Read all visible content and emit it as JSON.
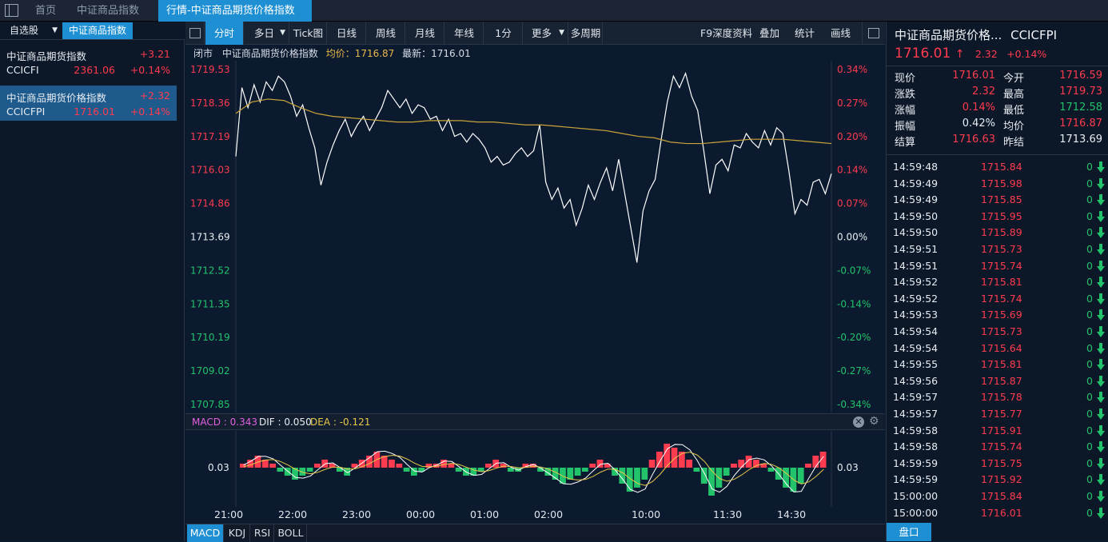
{
  "topbar": {
    "tabs": [
      "首页",
      "中证商品指数"
    ],
    "active_tab": "行情-中证商品期货价格指数",
    "close_glyph": "×"
  },
  "left": {
    "tab_watchlist": "自选股",
    "tab_index": "中证商品指数",
    "stocks": [
      {
        "name": "中证商品期货指数",
        "change": "+3.21",
        "code": "CCICFI",
        "price": "2361.06",
        "pct": "+0.14%"
      },
      {
        "name": "中证商品期货价格指数",
        "change": "+2.32",
        "code": "CCICFPI",
        "price": "1716.01",
        "pct": "+0.14%"
      }
    ]
  },
  "toolbar": {
    "buttons": [
      "分时",
      "多日",
      "Tick图",
      "日线",
      "周线",
      "月线",
      "年线",
      "1分",
      "更多",
      "多周期"
    ],
    "right": [
      "F9深度资料",
      "叠加",
      "统计",
      "画线"
    ]
  },
  "info": {
    "status": "闭市",
    "name": "中证商品期货价格指数",
    "avg_label": "均价：1716.87",
    "last_label": "最新：1716.01"
  },
  "chart_data": {
    "type": "line",
    "y_left_ticks": [
      "1719.53",
      "1718.36",
      "1717.19",
      "1716.03",
      "1714.86",
      "1713.69",
      "1712.52",
      "1711.35",
      "1710.19",
      "1709.02",
      "1707.85"
    ],
    "y_right_ticks": [
      "0.34%",
      "0.27%",
      "0.20%",
      "0.14%",
      "0.07%",
      "0.00%",
      "-0.07%",
      "-0.14%",
      "-0.20%",
      "-0.27%",
      "-0.34%"
    ],
    "ylim": [
      1707.85,
      1719.53
    ],
    "prev_close": 1713.69,
    "x_labels": [
      "21:00",
      "22:00",
      "23:00",
      "00:00",
      "01:00",
      "02:00",
      "10:00",
      "11:30",
      "14:30"
    ],
    "series": [
      {
        "values": [
          1716.5,
          1718.9,
          1718.2,
          1719.0,
          1718.4,
          1719.1,
          1718.8,
          1719.3,
          1719.1,
          1718.6,
          1717.9,
          1718.3,
          1717.5,
          1716.8,
          1715.5,
          1716.3,
          1716.9,
          1717.4,
          1717.8,
          1717.2,
          1717.6,
          1717.9,
          1717.4,
          1717.8,
          1718.2,
          1718.8,
          1718.5,
          1718.2,
          1718.5,
          1718.0,
          1718.3,
          1718.2,
          1717.8,
          1717.9,
          1717.4,
          1717.8,
          1717.2,
          1717.3,
          1717.0,
          1717.3,
          1717.1,
          1716.8,
          1716.3,
          1716.5,
          1716.2,
          1716.3,
          1716.6,
          1716.8,
          1716.5,
          1716.7,
          1717.6,
          1715.6,
          1715.0,
          1715.4,
          1714.7,
          1715.0,
          1714.1,
          1714.7,
          1715.5,
          1715.0,
          1715.6,
          1716.1,
          1715.3,
          1716.4,
          1715.2,
          1714.0,
          1712.8,
          1714.6,
          1715.3,
          1715.7,
          1717.1,
          1718.4,
          1719.3,
          1718.9,
          1719.4,
          1718.6,
          1718.1,
          1716.7,
          1715.2,
          1716.2,
          1716.4,
          1716.0,
          1716.9,
          1716.8,
          1717.3,
          1717.0,
          1716.8,
          1717.4,
          1716.9,
          1717.5,
          1717.3,
          1716.0,
          1714.5,
          1715.0,
          1714.8,
          1715.6,
          1715.7,
          1715.2,
          1715.9
        ]
      },
      {
        "values": [
          1718.0,
          1718.4,
          1718.5,
          1718.45,
          1718.2,
          1718.0,
          1717.9,
          1717.85,
          1717.8,
          1717.75,
          1717.7,
          1717.7,
          1717.75,
          1717.75,
          1717.75,
          1717.7,
          1717.7,
          1717.65,
          1717.6,
          1717.6,
          1717.55,
          1717.5,
          1717.45,
          1717.4,
          1717.3,
          1717.2,
          1717.15,
          1717.0,
          1716.95,
          1716.95,
          1717.0,
          1717.05,
          1717.1,
          1717.1,
          1717.1,
          1717.05,
          1717.0,
          1716.95
        ]
      }
    ],
    "macd": {
      "macd_label": "MACD : 0.343",
      "dif_label": "DIF : 0.050",
      "dea_label": "DEA : -0.121",
      "axis_left": "0.03",
      "axis_right": "0.03",
      "histogram": [
        1,
        2,
        3,
        2,
        1,
        -1,
        -2,
        -3,
        -2,
        -1,
        1,
        2,
        1,
        -1,
        -2,
        1,
        2,
        3,
        4,
        3,
        2,
        1,
        -1,
        -2,
        -1,
        1,
        1,
        2,
        1,
        -1,
        -2,
        -2,
        -1,
        1,
        2,
        1,
        -1,
        -1,
        1,
        1,
        -1,
        -2,
        -3,
        -4,
        -3,
        -2,
        -1,
        1,
        2,
        1,
        -2,
        -4,
        -6,
        -5,
        -3,
        2,
        4,
        6,
        5,
        4,
        2,
        -1,
        -4,
        -7,
        -5,
        -2,
        1,
        2,
        3,
        2,
        1,
        -1,
        -3,
        -5,
        -6,
        -4,
        1,
        3,
        4
      ]
    }
  },
  "indicator_tabs": [
    "MACD",
    "KDJ",
    "RSI",
    "BOLL"
  ],
  "right": {
    "title": "中证商品期货价格...",
    "code": "CCICFPI",
    "price": "1716.01",
    "arrow": "↑",
    "change": "2.32",
    "pct": "+0.14%",
    "quote": [
      {
        "l": "现价",
        "v": "1716.01",
        "c": "#ff3b4f",
        "l2": "今开",
        "v2": "1716.59",
        "c2": "#ff3b4f"
      },
      {
        "l": "涨跌",
        "v": "2.32",
        "c": "#ff3b4f",
        "l2": "最高",
        "v2": "1719.73",
        "c2": "#ff3b4f"
      },
      {
        "l": "涨幅",
        "v": "0.14%",
        "c": "#ff3b4f",
        "l2": "最低",
        "v2": "1712.58",
        "c2": "#22c36b"
      },
      {
        "l": "振幅",
        "v": "0.42%",
        "c": "#e8edf3",
        "l2": "均价",
        "v2": "1716.87",
        "c2": "#ff3b4f"
      },
      {
        "l": "结算",
        "v": "1716.63",
        "c": "#ff3b4f",
        "l2": "昨结",
        "v2": "1713.69",
        "c2": "#e8edf3"
      }
    ],
    "ticks": [
      {
        "t": "14:59:48",
        "p": "1715.84"
      },
      {
        "t": "14:59:49",
        "p": "1715.98"
      },
      {
        "t": "14:59:49",
        "p": "1715.85"
      },
      {
        "t": "14:59:50",
        "p": "1715.95"
      },
      {
        "t": "14:59:50",
        "p": "1715.89"
      },
      {
        "t": "14:59:51",
        "p": "1715.73"
      },
      {
        "t": "14:59:51",
        "p": "1715.74"
      },
      {
        "t": "14:59:52",
        "p": "1715.81"
      },
      {
        "t": "14:59:52",
        "p": "1715.74"
      },
      {
        "t": "14:59:53",
        "p": "1715.69"
      },
      {
        "t": "14:59:54",
        "p": "1715.73"
      },
      {
        "t": "14:59:54",
        "p": "1715.64"
      },
      {
        "t": "14:59:55",
        "p": "1715.81"
      },
      {
        "t": "14:59:56",
        "p": "1715.87"
      },
      {
        "t": "14:59:57",
        "p": "1715.78"
      },
      {
        "t": "14:59:57",
        "p": "1715.77"
      },
      {
        "t": "14:59:58",
        "p": "1715.91"
      },
      {
        "t": "14:59:58",
        "p": "1715.74"
      },
      {
        "t": "14:59:59",
        "p": "1715.75"
      },
      {
        "t": "14:59:59",
        "p": "1715.92"
      },
      {
        "t": "15:00:00",
        "p": "1715.84"
      },
      {
        "t": "15:00:00",
        "p": "1716.01"
      }
    ],
    "tick_volume": "0",
    "pankou": "盘口"
  },
  "colors": {
    "up": "#ff3b4f",
    "down": "#22c36b",
    "price_line": "#ffffff",
    "avg_line": "#c9a43a",
    "accent": "#1e8fd3"
  }
}
